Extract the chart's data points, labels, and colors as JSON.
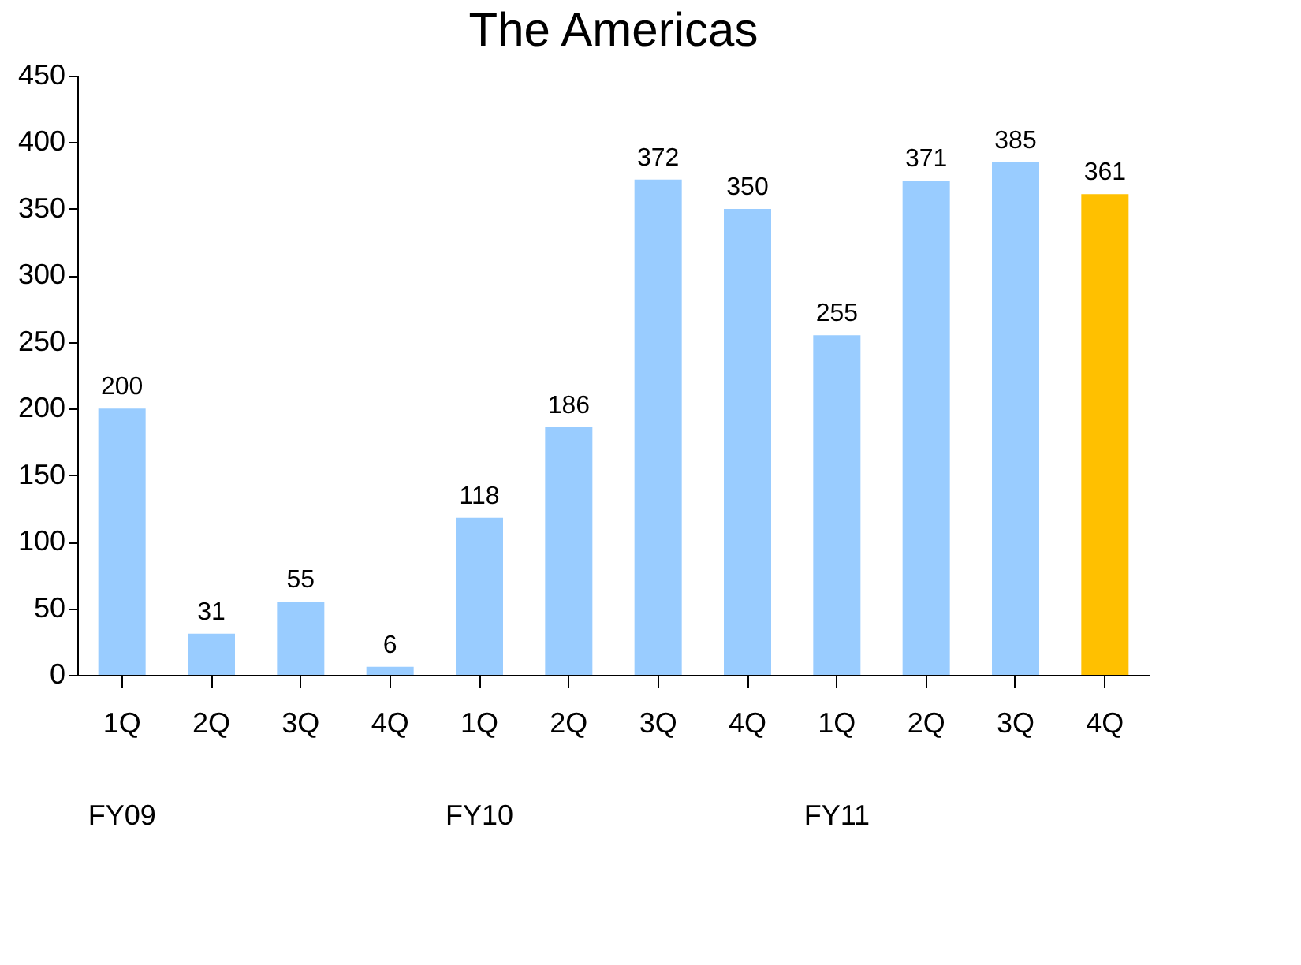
{
  "chart_data": {
    "type": "bar",
    "title": "The Americas",
    "categories": [
      "1Q",
      "2Q",
      "3Q",
      "4Q",
      "1Q",
      "2Q",
      "3Q",
      "4Q",
      "1Q",
      "2Q",
      "3Q",
      "4Q"
    ],
    "values": [
      200,
      31,
      55,
      6,
      118,
      186,
      372,
      350,
      255,
      371,
      385,
      361
    ],
    "colors": [
      "#99ccff",
      "#99ccff",
      "#99ccff",
      "#99ccff",
      "#99ccff",
      "#99ccff",
      "#99ccff",
      "#99ccff",
      "#99ccff",
      "#99ccff",
      "#99ccff",
      "#ffc000"
    ],
    "ylim": [
      0,
      450
    ],
    "yticks": [
      0,
      50,
      100,
      150,
      200,
      250,
      300,
      350,
      400,
      450
    ],
    "data_labels": true,
    "annotations": [
      "FY09",
      "FY10",
      "FY11"
    ]
  }
}
